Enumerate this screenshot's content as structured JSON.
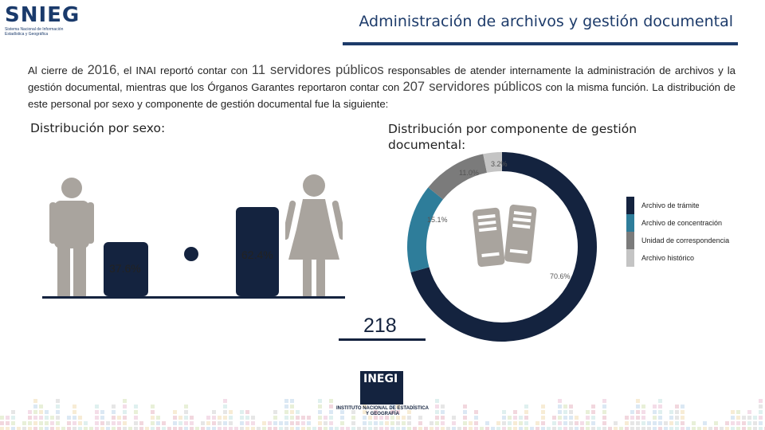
{
  "header": {
    "logo_text": "SNIEG",
    "logo_subtitle": "Sistema Nacional de Información Estadística y Geográfica",
    "title": "Administración de archivos y gestión documental"
  },
  "intro": {
    "p1": "Al cierre de ",
    "year": "2016",
    "p2": ", el INAI reportó contar con ",
    "inai_count": "11 servidores públicos",
    "p3": " responsables de atender internamente la administración de archivos y la gestión documental, mientras que los Órganos Garantes reportaron contar con ",
    "og_count": "207 servidores públicos",
    "p4": " con la misma función. La distribución de este personal por sexo y componente de gestión documental fue la siguiente:"
  },
  "sex_section": {
    "heading": "Distribución por sexo:",
    "total": "218",
    "colors": {
      "bar": "#14233f",
      "figure": "#a9a49e"
    }
  },
  "component_section": {
    "heading": "Distribución por componente de gestión documental:"
  },
  "chart_data": [
    {
      "type": "bar",
      "categories": [
        "Hombres",
        "Mujeres"
      ],
      "values": [
        37.6,
        62.4
      ],
      "value_labels": [
        "37.6%",
        "62.4%"
      ],
      "ylim": [
        0,
        100
      ]
    },
    {
      "type": "pie",
      "donut": true,
      "categories": [
        "Archivo de trámite",
        "Archivo de concentración",
        "Unidad de correspondencia",
        "Archivo histórico"
      ],
      "values": [
        70.6,
        15.1,
        11.0,
        3.2
      ],
      "value_labels": [
        "70.6%",
        "15.1%",
        "11.0%",
        "3.2%"
      ],
      "colors": [
        "#14233f",
        "#2e7d9a",
        "#7b7b7b",
        "#c4c4c4"
      ],
      "legend_position": "right"
    }
  ],
  "footer": {
    "logo_text": "INEGI",
    "logo_subtitle": "INSTITUTO NACIONAL DE ESTADÍSTICA Y GEOGRAFÍA"
  }
}
